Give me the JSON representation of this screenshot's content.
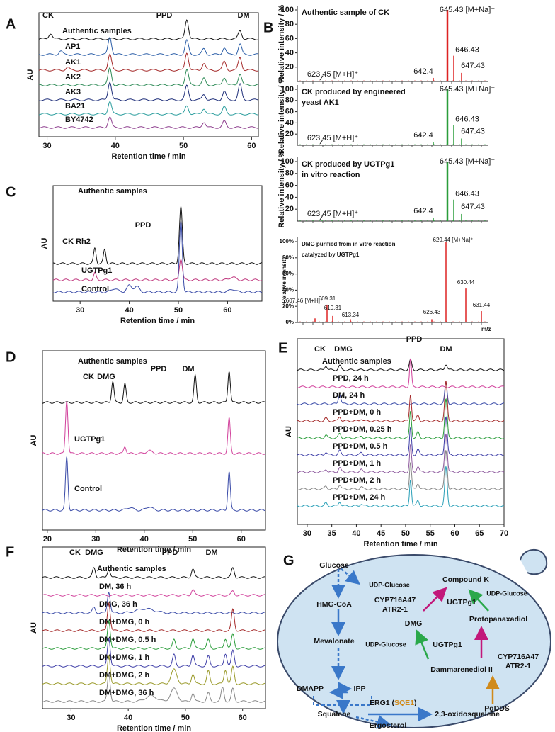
{
  "panel_a": {
    "label": "A",
    "peaks": [
      "CK",
      "PPD",
      "DM"
    ],
    "traces": [
      "Authentic samples",
      "AP1",
      "AK1",
      "AK2",
      "AK3",
      "BA21",
      "BY4742"
    ],
    "y_label": "AU",
    "x_label": "Retention time / min",
    "x_ticks": [
      "30",
      "40",
      "50",
      "60"
    ]
  },
  "panel_b": {
    "label": "B",
    "spectra": [
      {
        "title": [
          "Authentic sample of CK"
        ],
        "y_label": "Relative intensity / %",
        "y_ticks": [
          "20",
          "40",
          "60",
          "80",
          "100"
        ],
        "peaks": [
          "645.43 [M+Na]⁺",
          "646.43",
          "647.43",
          "642.4",
          "623.45 [M+H]⁺"
        ]
      },
      {
        "title": [
          "CK produced by engineered",
          "yeast AK1"
        ],
        "y_label": "Relative intensity / %",
        "y_ticks": [
          "20",
          "40",
          "60",
          "80",
          "100"
        ],
        "peaks": [
          "645.43 [M+Na]⁺",
          "646.43",
          "647.43",
          "642.4",
          "623.45 [M+H]⁺"
        ]
      },
      {
        "title": [
          "CK produced by UGTPg1",
          "in vitro reaction"
        ],
        "y_label": "Relative intensity / %",
        "y_ticks": [
          "20",
          "40",
          "60",
          "80",
          "100"
        ],
        "peaks": [
          "645.43 [M+Na]⁺",
          "646.43",
          "647.43",
          "642.4",
          "623.45 [M+H]⁺"
        ]
      },
      {
        "title": [
          "DMG purified from in vitro reaction",
          "catalyzed by UGTPg1"
        ],
        "y_label": "Relative intensity",
        "y_ticks": [
          "0%",
          "20%",
          "40%",
          "60%",
          "80%",
          "100%"
        ],
        "peaks": [
          "629.44 [M+Na]⁺",
          "630.44",
          "631.44",
          "626.43",
          "613.34",
          "610.31",
          "609.31",
          "607.46 [M+H]⁺"
        ],
        "x_label": "m/z"
      }
    ]
  },
  "panel_c": {
    "label": "C",
    "header": "Authentic  samples",
    "peaks": [
      "CK Rh2",
      "PPD"
    ],
    "traces": [
      "UGTPg1",
      "Control"
    ],
    "y_label": "AU",
    "x_label": "Retention time / min",
    "x_ticks": [
      "30",
      "40",
      "50",
      "60"
    ]
  },
  "panel_d": {
    "label": "D",
    "header": "Authentic samples",
    "peaks": [
      "CK",
      "DMG",
      "PPD",
      "DM"
    ],
    "traces": [
      "UGTPg1",
      "Control"
    ],
    "y_label": "AU",
    "x_label": "Retention time / min",
    "x_ticks": [
      "20",
      "30",
      "40",
      "50",
      "60"
    ]
  },
  "panel_e": {
    "label": "E",
    "peaks": [
      "CK",
      "DMG",
      "PPD",
      "DM"
    ],
    "traces": [
      "Authentic samples",
      "PPD, 24 h",
      "DM, 24 h",
      "PPD+DM, 0 h",
      "PPD+DM, 0.25 h",
      "PPD+DM, 0.5 h",
      "PPD+DM, 1 h",
      "PPD+DM, 2 h",
      "PPD+DM, 24 h"
    ],
    "y_label": "AU",
    "x_label": "Retention time / min",
    "x_ticks": [
      "30",
      "35",
      "40",
      "45",
      "50",
      "55",
      "60",
      "65",
      "70"
    ]
  },
  "panel_f": {
    "label": "F",
    "peaks": [
      "CK",
      "DMG",
      "PPD",
      "DM"
    ],
    "traces": [
      "Authentic samples",
      "DM, 36 h",
      "DMG, 36 h",
      "DM+DMG, 0 h",
      "DM+DMG, 0.5 h",
      "DM+DMG, 1 h",
      "DM+DMG, 2 h",
      "DM+DMG, 36 h"
    ],
    "y_label": "AU",
    "x_label": "Retention time / min",
    "x_ticks": [
      "30",
      "40",
      "50",
      "60"
    ]
  },
  "panel_g": {
    "label": "G",
    "nodes": [
      "Glucose",
      "UDP-Glucose",
      "HMG-CoA",
      "Mevalonate",
      "DMAPP",
      "IPP",
      "Squalene",
      "Ergosterol",
      "ERG1 (",
      "SQE1",
      ")",
      "2,3-oxidosqualene",
      "PgDDS",
      "Dammarenediol II",
      "UGTPg1",
      "UDP-Glucose",
      "DMG",
      "CYP716A47",
      "ATR2-1",
      "Compound K",
      "UGTPg1",
      "UDP-Glucose",
      "Protopanaxadiol",
      "CYP716A47",
      "ATR2-1"
    ]
  }
}
